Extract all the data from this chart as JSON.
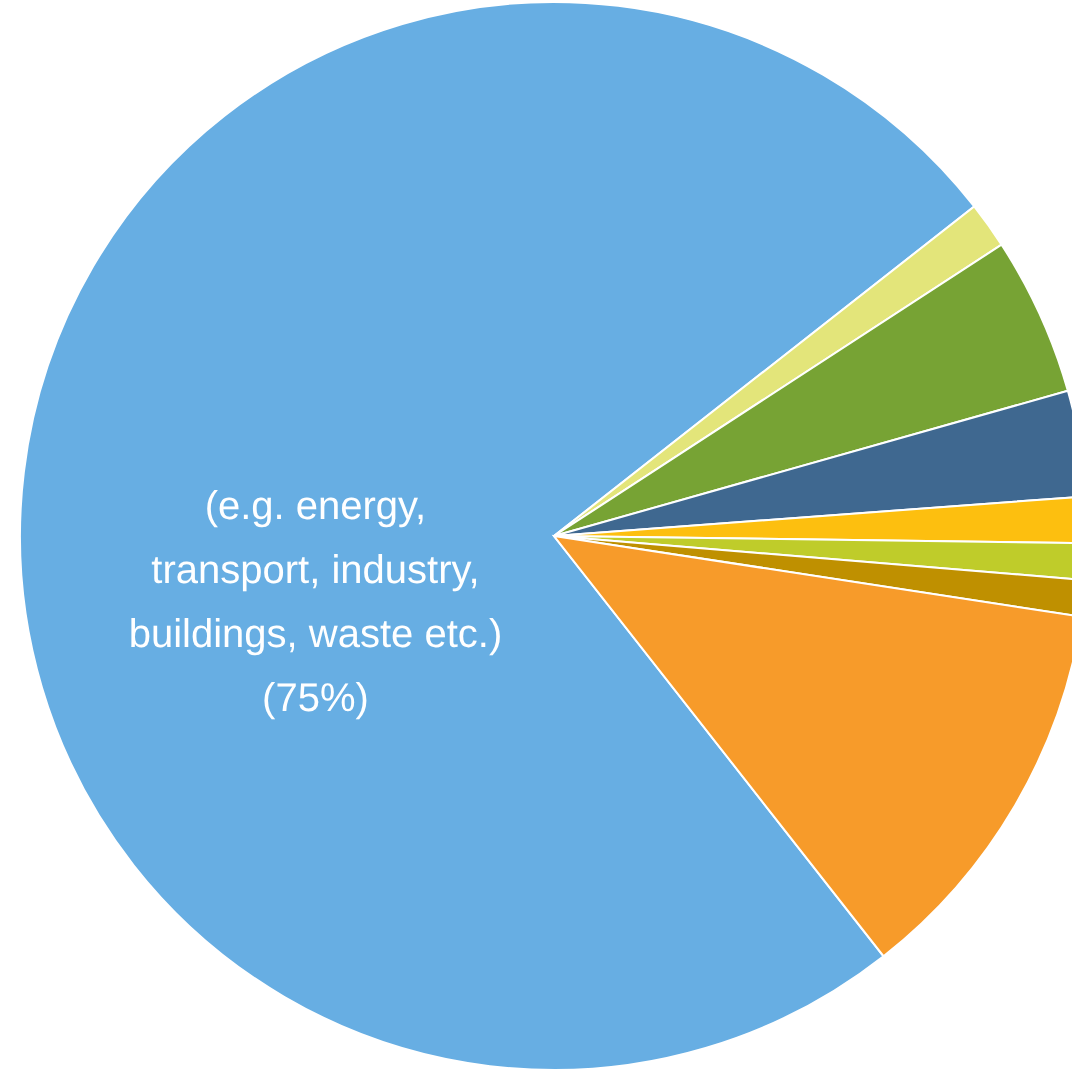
{
  "chart_data": {
    "type": "pie",
    "categories": [
      "(e.g. energy, transport, industry, buildings, waste etc.)",
      null,
      null,
      null,
      null,
      null,
      null,
      null
    ],
    "values": [
      75,
      1.4,
      4.8,
      3.2,
      1.4,
      1.1,
      1.1,
      12.0
    ],
    "value_labels": [
      "(75%)",
      null,
      null,
      null,
      null,
      null,
      null,
      null
    ],
    "colors": [
      "#67aee3",
      "#e3e57a",
      "#77a334",
      "#3f6890",
      "#fdbf0f",
      "#bfcc2a",
      "#bf9000",
      "#f79b2a"
    ]
  }
}
